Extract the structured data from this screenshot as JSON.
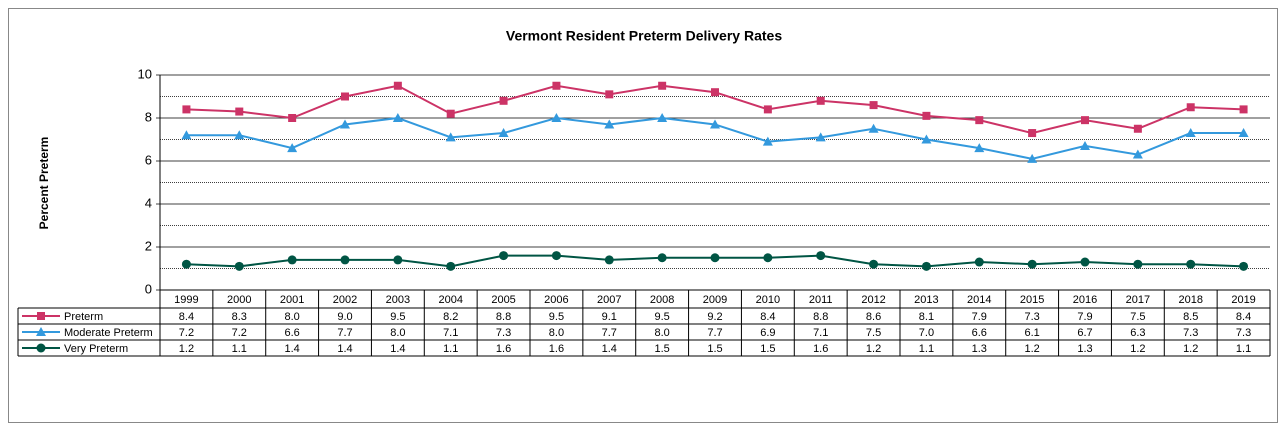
{
  "chart_data": {
    "type": "line",
    "title": "Vermont Resident Preterm Delivery Rates",
    "y_label": "Percent Preterm",
    "categories": [
      "1999",
      "2000",
      "2001",
      "2002",
      "2003",
      "2004",
      "2005",
      "2006",
      "2007",
      "2008",
      "2009",
      "2010",
      "2011",
      "2012",
      "2013",
      "2014",
      "2015",
      "2016",
      "2017",
      "2018",
      "2019"
    ],
    "series": [
      {
        "name": "Preterm",
        "color": "#cc3366",
        "marker": "square",
        "values": [
          8.4,
          8.3,
          8.0,
          9.0,
          9.5,
          8.2,
          8.8,
          9.5,
          9.1,
          9.5,
          9.2,
          8.4,
          8.8,
          8.6,
          8.1,
          7.9,
          7.3,
          7.9,
          7.5,
          8.5,
          8.4
        ],
        "value_labels": [
          "8.4",
          "8.3",
          "8.0",
          "9.0",
          "9.5",
          "8.2",
          "8.8",
          "9.5",
          "9.1",
          "9.5",
          "9.2",
          "8.4",
          "8.8",
          "8.6",
          "8.1",
          "7.9",
          "7.3",
          "7.9",
          "7.5",
          "8.5",
          "8.4"
        ]
      },
      {
        "name": "Moderate Preterm",
        "color": "#3399dd",
        "marker": "triangle",
        "values": [
          7.2,
          7.2,
          6.6,
          7.7,
          8.0,
          7.1,
          7.3,
          8.0,
          7.7,
          8.0,
          7.7,
          6.9,
          7.1,
          7.5,
          7.0,
          6.6,
          6.1,
          6.7,
          6.3,
          7.3,
          7.3
        ],
        "value_labels": [
          "7.2",
          "7.2",
          "6.6",
          "7.7",
          "8.0",
          "7.1",
          "7.3",
          "8.0",
          "7.7",
          "8.0",
          "7.7",
          "6.9",
          "7.1",
          "7.5",
          "7.0",
          "6.6",
          "6.1",
          "6.7",
          "6.3",
          "7.3",
          "7.3"
        ]
      },
      {
        "name": "Very Preterm",
        "color": "#005544",
        "marker": "circle",
        "values": [
          1.2,
          1.1,
          1.4,
          1.4,
          1.4,
          1.1,
          1.6,
          1.6,
          1.4,
          1.5,
          1.5,
          1.5,
          1.6,
          1.2,
          1.1,
          1.3,
          1.2,
          1.3,
          1.2,
          1.2,
          1.1
        ],
        "value_labels": [
          "1.2",
          "1.1",
          "1.4",
          "1.4",
          "1.4",
          "1.1",
          "1.6",
          "1.6",
          "1.4",
          "1.5",
          "1.5",
          "1.5",
          "1.6",
          "1.2",
          "1.1",
          "1.3",
          "1.2",
          "1.3",
          "1.2",
          "1.2",
          "1.1"
        ]
      }
    ],
    "ylim": [
      0,
      10
    ],
    "yticks": [
      0,
      2,
      4,
      6,
      8,
      10
    ],
    "minor_grid": [
      1,
      3,
      5,
      7,
      9
    ],
    "grid": true
  }
}
